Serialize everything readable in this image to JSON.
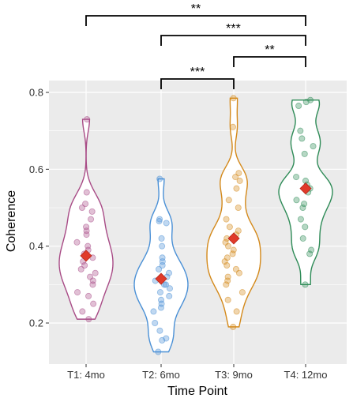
{
  "chart_data": {
    "type": "violin",
    "xlabel": "Time Point",
    "ylabel": "Coherence",
    "ylim": [
      0.1,
      0.82
    ],
    "yticks": [
      0.2,
      0.4,
      0.6,
      0.8
    ],
    "ytick_labels": [
      "0.2",
      "0.4",
      "0.6",
      "0.8"
    ],
    "grid": true,
    "categories": [
      "T1: 4mo",
      "T2: 6mo",
      "T3: 9mo",
      "T4: 12mo"
    ],
    "series": [
      {
        "category": "T1: 4mo",
        "color": "#a84b86",
        "mean": 0.375,
        "points": [
          0.73,
          0.54,
          0.51,
          0.5,
          0.49,
          0.47,
          0.45,
          0.44,
          0.43,
          0.41,
          0.4,
          0.39,
          0.38,
          0.37,
          0.36,
          0.35,
          0.34,
          0.33,
          0.32,
          0.31,
          0.3,
          0.28,
          0.27,
          0.25,
          0.23,
          0.21
        ]
      },
      {
        "category": "T2: 6mo",
        "color": "#4a90d6",
        "mean": 0.315,
        "points": [
          0.575,
          0.47,
          0.465,
          0.46,
          0.42,
          0.4,
          0.37,
          0.36,
          0.35,
          0.34,
          0.33,
          0.32,
          0.31,
          0.3,
          0.3,
          0.29,
          0.28,
          0.27,
          0.26,
          0.25,
          0.24,
          0.23,
          0.2,
          0.18,
          0.16,
          0.155,
          0.125
        ]
      },
      {
        "category": "T3: 9mo",
        "color": "#d4891a",
        "mean": 0.42,
        "points": [
          0.785,
          0.71,
          0.59,
          0.58,
          0.57,
          0.55,
          0.52,
          0.5,
          0.47,
          0.45,
          0.44,
          0.43,
          0.42,
          0.41,
          0.4,
          0.39,
          0.38,
          0.37,
          0.36,
          0.35,
          0.34,
          0.33,
          0.32,
          0.31,
          0.3,
          0.28,
          0.26,
          0.23,
          0.19
        ]
      },
      {
        "category": "T4: 12mo",
        "color": "#2e8b57",
        "mean": 0.55,
        "points": [
          0.78,
          0.775,
          0.765,
          0.7,
          0.68,
          0.66,
          0.64,
          0.58,
          0.57,
          0.56,
          0.55,
          0.54,
          0.52,
          0.51,
          0.5,
          0.47,
          0.45,
          0.42,
          0.39,
          0.38,
          0.3
        ]
      }
    ],
    "significance": [
      {
        "from": "T1: 4mo",
        "to": "T4: 12mo",
        "label": "**"
      },
      {
        "from": "T2: 6mo",
        "to": "T4: 12mo",
        "label": "***"
      },
      {
        "from": "T3: 9mo",
        "to": "T4: 12mo",
        "label": "**"
      },
      {
        "from": "T2: 6mo",
        "to": "T3: 9mo",
        "label": "***"
      }
    ]
  }
}
